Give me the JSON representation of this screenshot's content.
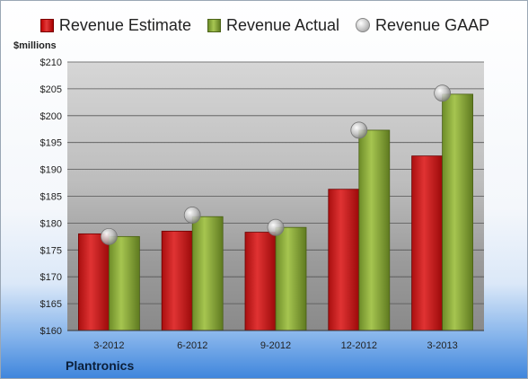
{
  "legend": {
    "estimate": "Revenue Estimate",
    "actual": "Revenue Actual",
    "gaap": "Revenue GAAP"
  },
  "unit_label": "$millions",
  "company": "Plantronics",
  "colors": {
    "estimate": "#c81b1b",
    "actual": "#8aab3c",
    "gaap": "#b8b8b8"
  },
  "chart_data": {
    "type": "bar",
    "categories": [
      "3-2012",
      "6-2012",
      "9-2012",
      "12-2012",
      "3-2013"
    ],
    "series": [
      {
        "name": "Revenue Estimate",
        "type": "bar",
        "values": [
          178.0,
          178.5,
          178.3,
          186.3,
          192.5
        ]
      },
      {
        "name": "Revenue Actual",
        "type": "bar",
        "values": [
          177.5,
          181.2,
          179.2,
          197.3,
          204.0
        ]
      },
      {
        "name": "Revenue GAAP",
        "type": "scatter",
        "values": [
          177.5,
          181.5,
          179.2,
          197.3,
          204.2
        ]
      }
    ],
    "ylim": [
      160,
      210
    ],
    "yticks": [
      "$160",
      "$165",
      "$170",
      "$175",
      "$180",
      "$185",
      "$190",
      "$195",
      "$200",
      "$205",
      "$210"
    ],
    "grid": true,
    "legend_position": "top"
  }
}
